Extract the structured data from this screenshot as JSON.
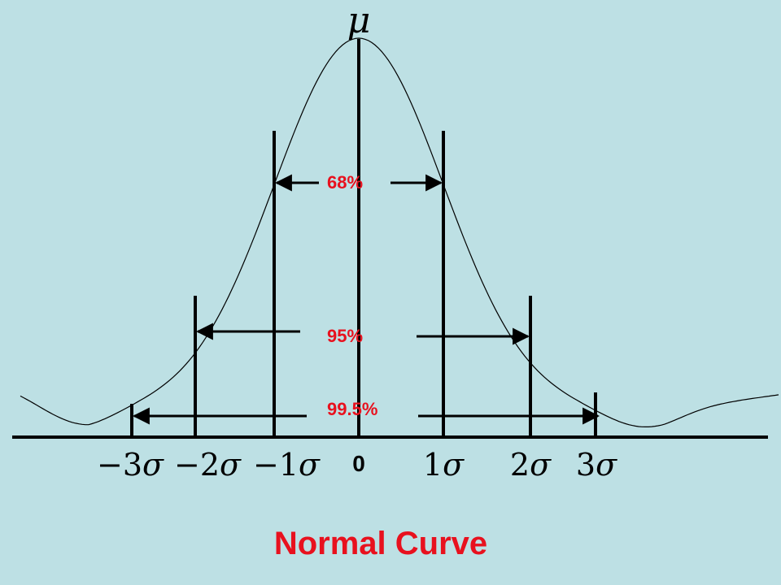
{
  "diagram": {
    "mean_symbol": "μ",
    "center_label": "0",
    "sigma_labels": [
      {
        "label": "−3",
        "name": "sigma-label-neg3"
      },
      {
        "label": "−2",
        "name": "sigma-label-neg2"
      },
      {
        "label": "−1",
        "name": "sigma-label-neg1"
      },
      {
        "label": "1",
        "name": "sigma-label-pos1"
      },
      {
        "label": "2",
        "name": "sigma-label-pos2"
      },
      {
        "label": "3",
        "name": "sigma-label-pos3"
      }
    ],
    "sigma_symbol": "σ",
    "ranges": [
      {
        "label": "68%",
        "sigma": 1
      },
      {
        "label": "95%",
        "sigma": 2
      },
      {
        "label": "99.5%",
        "sigma": 3
      }
    ],
    "title": "Normal Curve",
    "colors": {
      "background": "#BDE0E4",
      "ink": "#000000",
      "accent": "#E8111E"
    }
  }
}
